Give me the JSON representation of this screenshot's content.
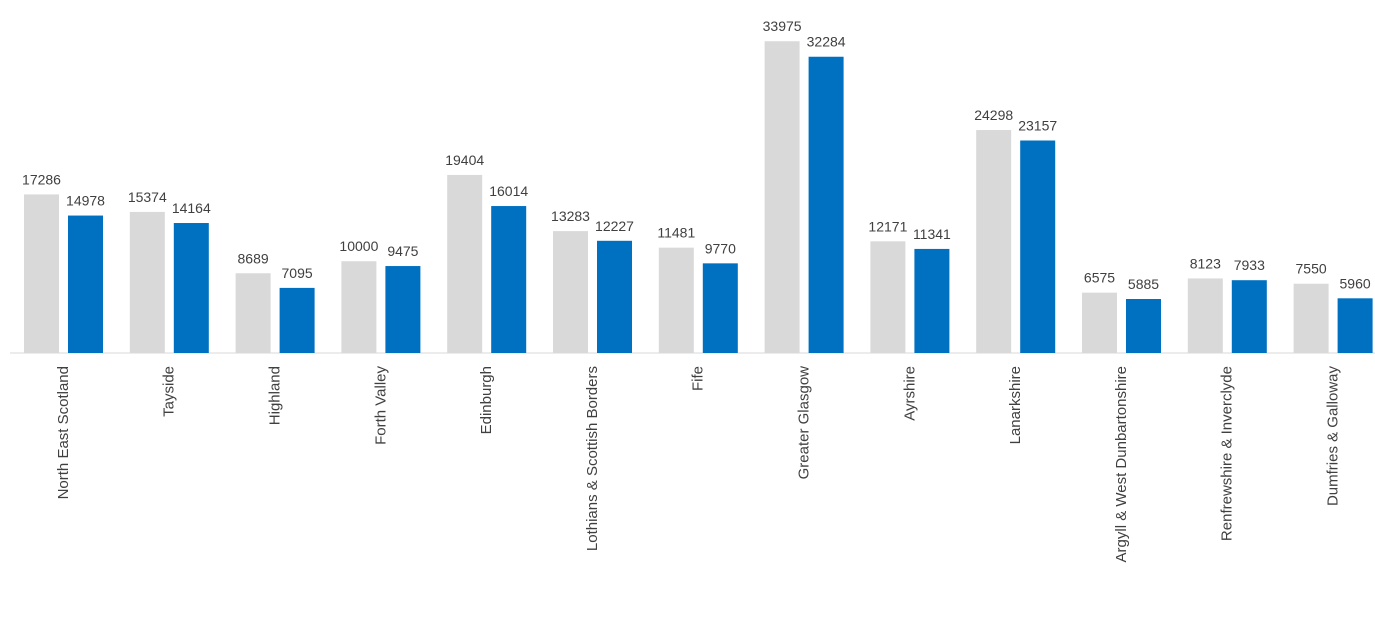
{
  "chart_data": {
    "type": "bar",
    "categories": [
      "North East Scotland",
      "Tayside",
      "Highland",
      "Forth Valley",
      "Edinburgh",
      "Lothians & Scottish Borders",
      "Fife",
      "Greater Glasgow",
      "Ayrshire",
      "Lanarkshire",
      "Argyll & West Dunbartonshire",
      "Renfrewshire & Inverclyde",
      "Dumfries & Galloway"
    ],
    "series": [
      {
        "values": [
          17286,
          15374,
          8689,
          10000,
          19404,
          13283,
          11481,
          33975,
          12171,
          24298,
          6575,
          8123,
          7550
        ],
        "color": "#d9d9d9"
      },
      {
        "values": [
          14978,
          14164,
          7095,
          9475,
          16014,
          12227,
          9770,
          32284,
          11341,
          23157,
          5885,
          7933,
          5960
        ],
        "color": "#0070c0"
      }
    ],
    "ylim": [
      0,
      34000
    ],
    "grid": false,
    "legend": "none",
    "data_labels": true
  }
}
